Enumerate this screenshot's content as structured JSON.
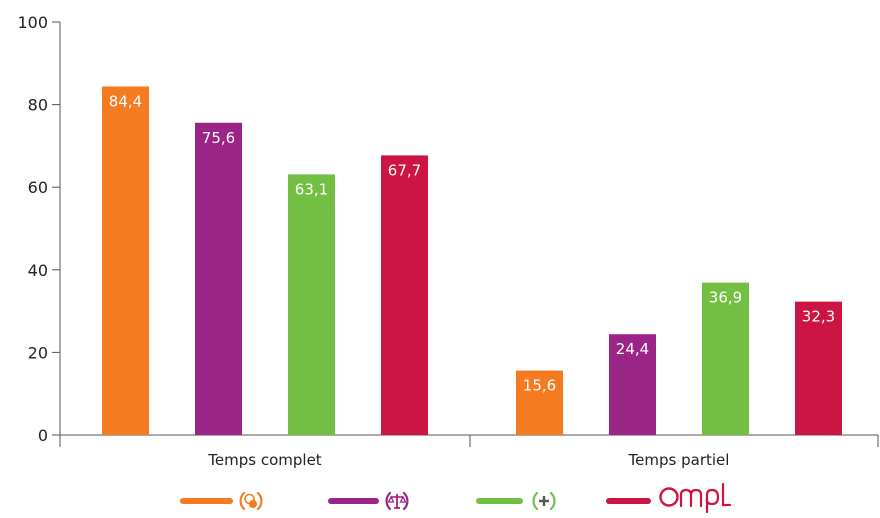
{
  "chart_data": {
    "type": "bar",
    "categories": [
      "Temps complet",
      "Temps partiel"
    ],
    "series": [
      {
        "values": [
          84.4,
          15.6
        ],
        "labels": [
          "84,4",
          "15,6"
        ],
        "color": "#F47B20",
        "legend_icon": "profession-icon-orange"
      },
      {
        "values": [
          75.6,
          24.4
        ],
        "labels": [
          "75,6",
          "24,4"
        ],
        "color": "#9B2586",
        "legend_icon": "scales-icon-purple"
      },
      {
        "values": [
          63.1,
          36.9
        ],
        "labels": [
          "63,1",
          "36,9"
        ],
        "color": "#72BF44",
        "legend_icon": "plus-icon-green"
      },
      {
        "values": [
          67.7,
          32.3
        ],
        "labels": [
          "67,7",
          "32,3"
        ],
        "color": "#CC1543",
        "legend_icon": "ompl-logo-red"
      }
    ],
    "yticks": [
      "0",
      "20",
      "40",
      "60",
      "80",
      "100"
    ],
    "ylim": [
      0,
      100
    ],
    "legend_position": "bottom",
    "legend_logo_text": "Ompl",
    "grid": false
  }
}
